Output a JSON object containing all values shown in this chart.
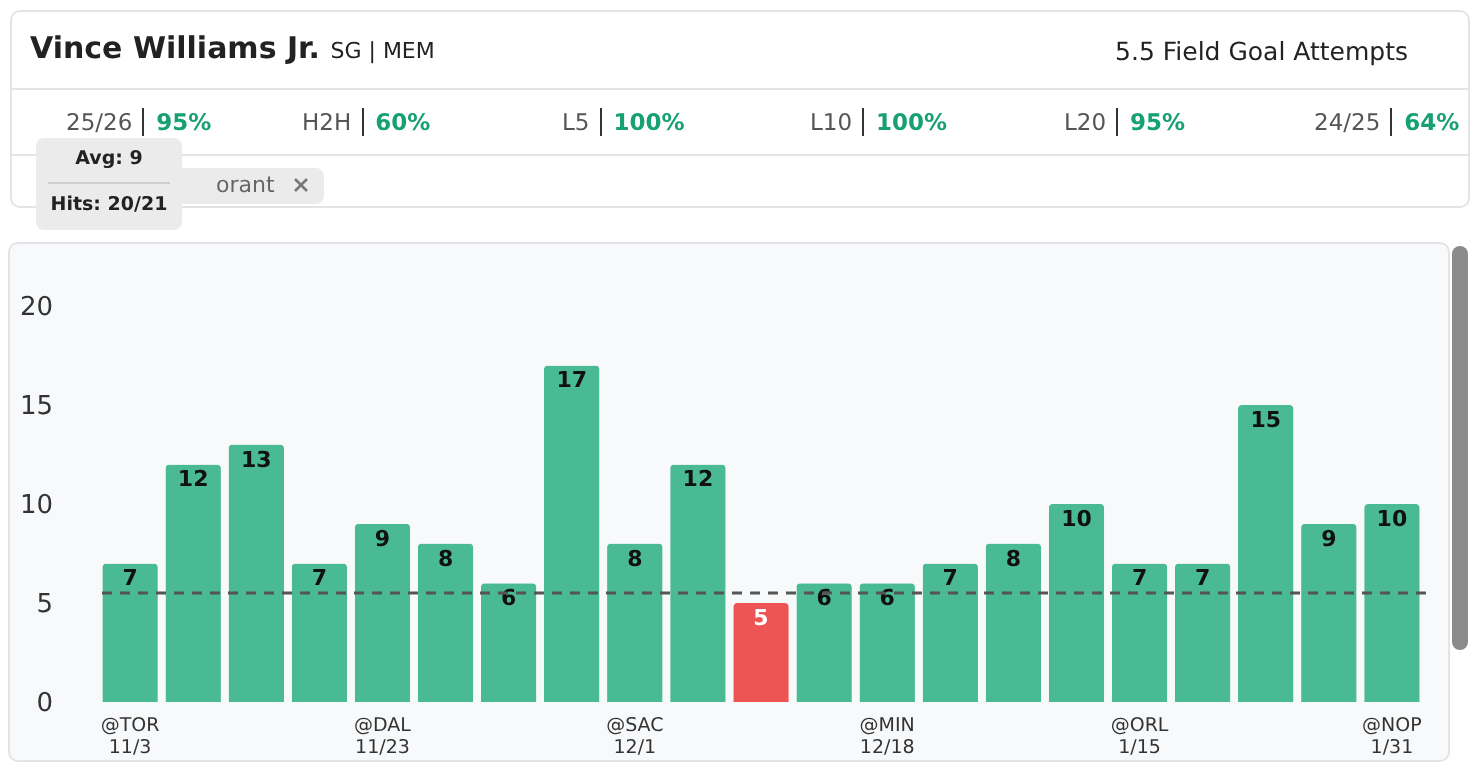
{
  "chart_data": {
    "type": "bar",
    "title": "Vince Williams Jr.",
    "subtitle": "SG | MEM",
    "categories": [
      "@TOR\n11/3",
      null,
      null,
      null,
      "@DAL\n11/23",
      null,
      null,
      null,
      "@SAC\n12/1",
      null,
      null,
      null,
      "@MIN\n12/18",
      null,
      null,
      null,
      "@ORL\n1/15",
      null,
      null,
      null,
      "@NOP\n1/31"
    ],
    "values": [
      7,
      12,
      13,
      7,
      9,
      8,
      6,
      17,
      8,
      12,
      5,
      6,
      6,
      7,
      8,
      10,
      7,
      7,
      15,
      9,
      10
    ],
    "colors": [
      "#4aba94",
      "#4aba94",
      "#4aba94",
      "#4aba94",
      "#4aba94",
      "#4aba94",
      "#4aba94",
      "#4aba94",
      "#4aba94",
      "#4aba94",
      "#ef5454",
      "#4aba94",
      "#4aba94",
      "#4aba94",
      "#4aba94",
      "#4aba94",
      "#4aba94",
      "#4aba94",
      "#4aba94",
      "#4aba94",
      "#4aba94"
    ],
    "ylim": [
      0,
      20
    ],
    "yticks": [
      0,
      5,
      10,
      15,
      20
    ],
    "grid": false,
    "data_labels": true,
    "ref_lines": [
      {
        "axis": "y",
        "value": 5.5,
        "color": "#555555",
        "line_style": "dashed"
      }
    ],
    "annotations": [
      "5.5 Field Goal Attempts",
      "25/26",
      "95%",
      "H2H",
      "60%",
      "L5",
      "100%",
      "L10",
      "100%",
      "L20",
      "95%",
      "24/25",
      "64%",
      "orant",
      "Avg: 9",
      "Hits: 20/21"
    ]
  }
}
